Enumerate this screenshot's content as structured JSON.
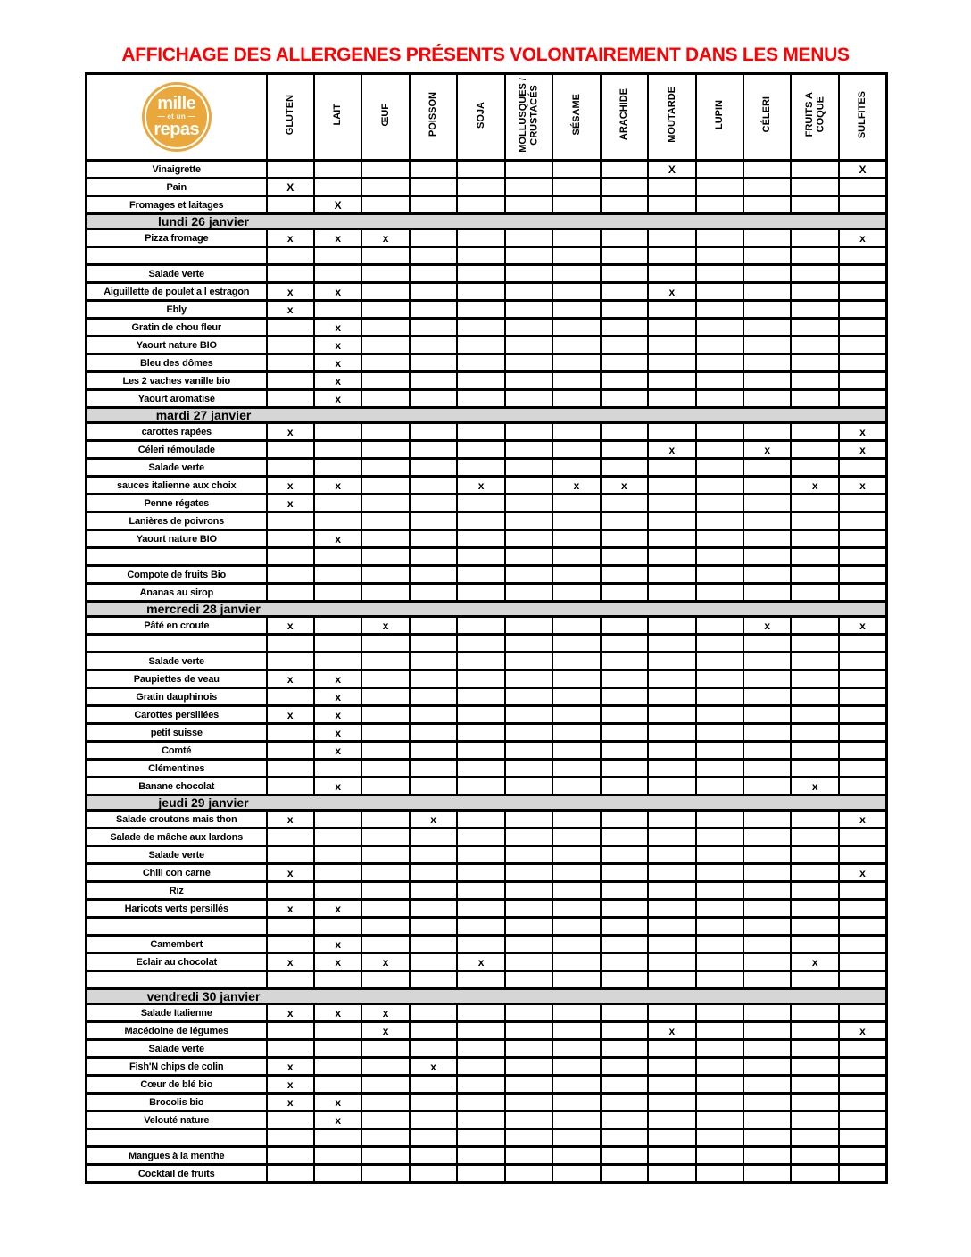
{
  "page": {
    "title": "AFFICHAGE DES ALLERGENES PRÉSENTS VOLONTAIREMENT DANS LES MENUS"
  },
  "colors": {
    "title_red": "#FF0000",
    "section_gray": "#D6D6D6",
    "logo_orange": "#EAA73C",
    "border_black": "#000000"
  },
  "logo": {
    "line1": "mille",
    "line2": "— et un —",
    "line3": "repas"
  },
  "table": {
    "columns": [
      "GLUTEN",
      "LAIT",
      "ŒUF",
      "POISSON",
      "SOJA",
      "MOLLUSQUES /\nCRUSTACÉS",
      "SÉSAME",
      "ARACHIDE",
      "MOUTARDE",
      "LUPIN",
      "CÉLERI",
      "FRUITS A\nCOQUE",
      "SULFITES"
    ],
    "rows": [
      {
        "label": "Vinaigrette",
        "mark": "X",
        "x": [
          8,
          12
        ]
      },
      {
        "label": "Pain",
        "mark": "X",
        "x": [
          0
        ]
      },
      {
        "label": "Fromages et laitages",
        "mark": "X",
        "x": [
          1
        ]
      },
      {
        "section": "lundi 26 janvier"
      },
      {
        "label": "Pizza fromage",
        "mark": "x",
        "x": [
          0,
          1,
          2,
          12
        ]
      },
      {
        "label": "",
        "x": []
      },
      {
        "label": "Salade verte",
        "x": []
      },
      {
        "label": "Aiguillette de poulet a l estragon",
        "mark": "x",
        "x": [
          0,
          1,
          8
        ]
      },
      {
        "label": "Ebly",
        "mark": "x",
        "x": [
          0
        ]
      },
      {
        "label": "Gratin de chou fleur",
        "mark": "x",
        "x": [
          1
        ]
      },
      {
        "label": "Yaourt nature BIO",
        "mark": "x",
        "x": [
          1
        ]
      },
      {
        "label": "Bleu des dômes",
        "mark": "x",
        "x": [
          1
        ]
      },
      {
        "label": "Les 2 vaches vanille bio",
        "mark": "x",
        "x": [
          1
        ]
      },
      {
        "label": "Yaourt aromatisé",
        "mark": "x",
        "x": [
          1
        ]
      },
      {
        "section": "mardi 27 janvier"
      },
      {
        "label": "carottes rapées",
        "mark": "x",
        "x": [
          0,
          12
        ]
      },
      {
        "label": "Céleri rémoulade",
        "mark": "x",
        "x": [
          8,
          10,
          12
        ]
      },
      {
        "label": "Salade verte",
        "x": []
      },
      {
        "label": "sauces italienne aux choix",
        "mark": "x",
        "x": [
          0,
          1,
          4,
          6,
          7,
          11,
          12
        ]
      },
      {
        "label": "Penne régates",
        "mark": "x",
        "x": [
          0
        ]
      },
      {
        "label": "Lanières de poivrons",
        "x": []
      },
      {
        "label": "Yaourt nature BIO",
        "mark": "x",
        "x": [
          1
        ]
      },
      {
        "label": "",
        "x": []
      },
      {
        "label": "Compote de fruits Bio",
        "x": []
      },
      {
        "label": "Ananas au sirop",
        "x": []
      },
      {
        "section": "mercredi 28 janvier"
      },
      {
        "label": "Pâté en croute",
        "mark": "x",
        "x": [
          0,
          2,
          10,
          12
        ]
      },
      {
        "label": "",
        "x": []
      },
      {
        "label": "Salade verte",
        "x": []
      },
      {
        "label": "Paupiettes de veau",
        "mark": "x",
        "x": [
          0,
          1
        ]
      },
      {
        "label": "Gratin dauphinois",
        "mark": "x",
        "x": [
          1
        ]
      },
      {
        "label": "Carottes persillées",
        "mark": "x",
        "x": [
          0,
          1
        ]
      },
      {
        "label": "petit suisse",
        "mark": "x",
        "x": [
          1
        ]
      },
      {
        "label": "Comté",
        "mark": "x",
        "x": [
          1
        ]
      },
      {
        "label": "Clémentines",
        "x": []
      },
      {
        "label": "Banane chocolat",
        "mark": "x",
        "x": [
          1,
          11
        ]
      },
      {
        "section": "jeudi 29 janvier"
      },
      {
        "label": "Salade croutons mais thon",
        "mark": "x",
        "x": [
          0,
          3,
          12
        ]
      },
      {
        "label": "Salade de mâche aux lardons",
        "x": []
      },
      {
        "label": "Salade verte",
        "x": []
      },
      {
        "label": "Chili con carne",
        "mark": "x",
        "x": [
          0,
          12
        ]
      },
      {
        "label": "Riz",
        "x": []
      },
      {
        "label": "Haricots verts persillés",
        "mark": "x",
        "x": [
          0,
          1
        ]
      },
      {
        "label": "",
        "x": []
      },
      {
        "label": "Camembert",
        "mark": "x",
        "x": [
          1
        ]
      },
      {
        "label": "Eclair au chocolat",
        "mark": "x",
        "x": [
          0,
          1,
          2,
          4,
          11
        ]
      },
      {
        "label": "",
        "x": []
      },
      {
        "section": "vendredi 30 janvier"
      },
      {
        "label": "Salade Italienne",
        "mark": "x",
        "x": [
          0,
          1,
          2
        ]
      },
      {
        "label": "Macédoine de légumes",
        "mark": "x",
        "x": [
          2,
          8,
          12
        ]
      },
      {
        "label": "Salade verte",
        "x": []
      },
      {
        "label": "Fish'N chips de colin",
        "mark": "x",
        "x": [
          0,
          3
        ]
      },
      {
        "label": "Cœur de blé bio",
        "mark": "x",
        "x": [
          0
        ]
      },
      {
        "label": "Brocolis bio",
        "mark": "x",
        "x": [
          0,
          1
        ]
      },
      {
        "label": "Velouté nature",
        "mark": "x",
        "x": [
          1
        ]
      },
      {
        "label": "",
        "x": []
      },
      {
        "label": "Mangues à la menthe",
        "x": []
      },
      {
        "label": "Cocktail de fruits",
        "x": []
      }
    ]
  }
}
